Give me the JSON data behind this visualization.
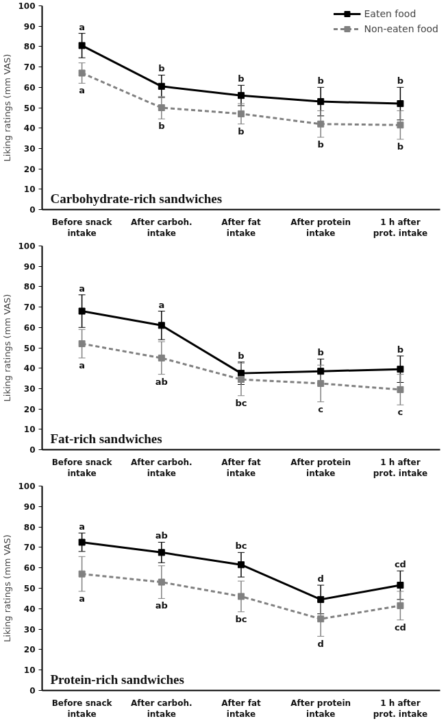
{
  "chart_data": [
    {
      "type": "line",
      "title": "Carbohydrate-rich sandwiches",
      "ylabel": "Liking ratings (mm VAS)",
      "categories": [
        "Before snack\nintake",
        "After carboh.\nintake",
        "After fat\nintake",
        "After protein\nintake",
        "1 h after\nprot. intake"
      ],
      "series": [
        {
          "name": "Eaten food",
          "color": "#000000",
          "line_style": "solid",
          "values": [
            80.5,
            60.5,
            56,
            53,
            52
          ],
          "errors": [
            6,
            5.5,
            5,
            7,
            8
          ]
        },
        {
          "name": "Non-eaten food",
          "color": "#808080",
          "line_style": "dashed",
          "values": [
            67,
            50,
            47,
            42,
            41.5
          ],
          "errors": [
            5,
            5.5,
            5,
            6.5,
            7
          ]
        }
      ],
      "ylim": [
        0,
        100
      ],
      "yticks": [
        0,
        10,
        20,
        30,
        40,
        50,
        60,
        70,
        80,
        90,
        100
      ],
      "marker": "square",
      "legend": "top right",
      "grid": false,
      "annotations": [
        {
          "text": "a",
          "x": "Before snack\nintake",
          "y": 80.5
        },
        {
          "text": "b",
          "x": "After carboh.\nintake",
          "y": 60.5
        },
        {
          "text": "b",
          "x": "After fat\nintake",
          "y": 56
        },
        {
          "text": "b",
          "x": "After protein\nintake",
          "y": 53
        },
        {
          "text": "b",
          "x": "1 h after\nprot. intake",
          "y": 52
        },
        {
          "text": "a",
          "x": "Before snack\nintake",
          "y": 67
        },
        {
          "text": "b",
          "x": "After carboh.\nintake",
          "y": 50
        },
        {
          "text": "b",
          "x": "After fat\nintake",
          "y": 47
        },
        {
          "text": "b",
          "x": "After protein\nintake",
          "y": 42
        },
        {
          "text": "b",
          "x": "1 h after\nprot. intake",
          "y": 41.5
        }
      ]
    },
    {
      "type": "line",
      "title": "Fat-rich sandwiches",
      "ylabel": "Liking ratings (mm VAS)",
      "categories": [
        "Before snack\nintake",
        "After carboh.\nintake",
        "After fat\nintake",
        "After protein\nintake",
        "1 h after\nprot. intake"
      ],
      "series": [
        {
          "color": "#000000",
          "line_style": "solid",
          "values": [
            68,
            61,
            37.5,
            38.5,
            39.5
          ],
          "errors": [
            8,
            7,
            5.5,
            6,
            6.5
          ]
        },
        {
          "color": "#808080",
          "line_style": "dashed",
          "values": [
            52,
            45,
            34.5,
            32.5,
            29.5
          ],
          "errors": [
            7,
            8,
            8,
            9,
            7.5
          ]
        }
      ],
      "ylim": [
        0,
        100
      ],
      "yticks": [
        0,
        10,
        20,
        30,
        40,
        50,
        60,
        70,
        80,
        90,
        100
      ],
      "marker": "square",
      "grid": false,
      "annotations": [
        {
          "text": "a",
          "x": "Before snack\nintake",
          "y": 68
        },
        {
          "text": "a",
          "x": "After carboh.\nintake",
          "y": 61
        },
        {
          "text": "b",
          "x": "After fat\nintake",
          "y": 37.5
        },
        {
          "text": "b",
          "x": "After protein\nintake",
          "y": 38.5
        },
        {
          "text": "b",
          "x": "1 h after\nprot. intake",
          "y": 39.5
        },
        {
          "text": "a",
          "x": "Before snack\nintake",
          "y": 52
        },
        {
          "text": "ab",
          "x": "After carboh.\nintake",
          "y": 45
        },
        {
          "text": "bc",
          "x": "After fat\nintake",
          "y": 34.5
        },
        {
          "text": "c",
          "x": "After protein\nintake",
          "y": 32.5
        },
        {
          "text": "c",
          "x": "1 h after\nprot. intake",
          "y": 29.5
        }
      ]
    },
    {
      "type": "line",
      "title": "Protein-rich sandwiches",
      "ylabel": "Liking ratings (mm VAS)",
      "categories": [
        "Before snack\nintake",
        "After carboh.\nintake",
        "After fat\nintake",
        "After protein\nintake",
        "1 h after\nprot. intake"
      ],
      "series": [
        {
          "color": "#000000",
          "line_style": "solid",
          "values": [
            72.5,
            67.5,
            61.5,
            44.5,
            51.5
          ],
          "errors": [
            4.5,
            5,
            6,
            7,
            7
          ]
        },
        {
          "color": "#808080",
          "line_style": "dashed",
          "values": [
            57,
            53,
            46,
            35,
            41.5
          ],
          "errors": [
            8.5,
            8,
            7.5,
            8.5,
            7
          ]
        }
      ],
      "ylim": [
        0,
        100
      ],
      "yticks": [
        0,
        10,
        20,
        30,
        40,
        50,
        60,
        70,
        80,
        90,
        100
      ],
      "marker": "square",
      "grid": false,
      "annotations": [
        {
          "text": "a",
          "x": "Before snack\nintake",
          "y": 72.5
        },
        {
          "text": "ab",
          "x": "After carboh.\nintake",
          "y": 67.5
        },
        {
          "text": "bc",
          "x": "After fat\nintake",
          "y": 61.5
        },
        {
          "text": "d",
          "x": "After protein\nintake",
          "y": 44.5
        },
        {
          "text": "cd",
          "x": "1 h after\nprot. intake",
          "y": 51.5
        },
        {
          "text": "a",
          "x": "Before snack\nintake",
          "y": 57
        },
        {
          "text": "ab",
          "x": "After carboh.\nintake",
          "y": 53
        },
        {
          "text": "bc",
          "x": "After fat\nintake",
          "y": 46
        },
        {
          "text": "d",
          "x": "After protein\nintake",
          "y": 35
        },
        {
          "text": "cd",
          "x": "1 h after\nprot. intake",
          "y": 41.5
        }
      ]
    }
  ]
}
